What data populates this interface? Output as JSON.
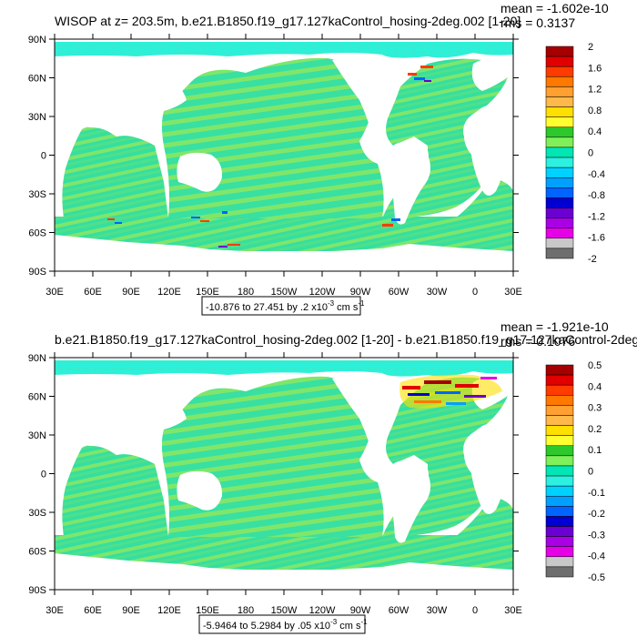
{
  "chart_data": [
    {
      "type": "heatmap",
      "title": "WISOP at z= 203.5m, b.e21.B1850.f19_g17.127kaControl_hosing-2deg.002 [1-20]",
      "stats": {
        "mean": "mean = -1.602e-10",
        "rms": "rms = 0.3137"
      },
      "y_ticks": [
        "90N",
        "60N",
        "30N",
        "0",
        "30S",
        "60S",
        "90S"
      ],
      "x_ticks": [
        "30E",
        "60E",
        "90E",
        "120E",
        "150E",
        "180",
        "150W",
        "120W",
        "90W",
        "60W",
        "30W",
        "0",
        "30E"
      ],
      "info": "-10.876 to 27.451 by .2 x10",
      "info_exp": "-3",
      "info_unit": " cm s",
      "info_exp2": "-1",
      "colorbar": {
        "labels": [
          "2",
          "1.6",
          "1.2",
          "0.8",
          "0.4",
          "0",
          "-0.4",
          "-0.8",
          "-1.2",
          "-1.6",
          "-2"
        ],
        "colors": [
          "#a50000",
          "#e00000",
          "#ff3c00",
          "#ff7800",
          "#ffa030",
          "#ffb84a",
          "#ffdf00",
          "#ffff30",
          "#2cc82c",
          "#7ff05a",
          "#00e6b4",
          "#2cf0e0",
          "#00d2ff",
          "#00a0ff",
          "#0064ff",
          "#0000d2",
          "#6a00d2",
          "#aa00e6",
          "#e600e6",
          "#c8c8c8",
          "#6e6e6e"
        ]
      }
    },
    {
      "type": "heatmap",
      "title": "b.e21.B1850.f19_g17.127kaControl_hosing-2deg.002 [1-20] - b.e21.B1850.f19_g17.127kaControl-2deg.",
      "stats": {
        "mean": "mean = -1.921e-10",
        "rms": "rms = 0.1076"
      },
      "y_ticks": [
        "90N",
        "60N",
        "30N",
        "0",
        "30S",
        "60S",
        "90S"
      ],
      "x_ticks": [
        "30E",
        "60E",
        "90E",
        "120E",
        "150E",
        "180",
        "150W",
        "120W",
        "90W",
        "60W",
        "30W",
        "0",
        "30E"
      ],
      "info": "-5.9464 to 5.2984 by .05 x10",
      "info_exp": "-3",
      "info_unit": " cm s",
      "info_exp2": "-1",
      "colorbar": {
        "labels": [
          "0.5",
          "0.4",
          "0.3",
          "0.2",
          "0.1",
          "0",
          "-0.1",
          "-0.2",
          "-0.3",
          "-0.4",
          "-0.5"
        ],
        "colors": [
          "#a50000",
          "#e00000",
          "#ff3c00",
          "#ff7800",
          "#ffa030",
          "#ffb84a",
          "#ffdf00",
          "#ffff30",
          "#2cc82c",
          "#7ff05a",
          "#00e6b4",
          "#2cf0e0",
          "#00d2ff",
          "#00a0ff",
          "#0064ff",
          "#0000d2",
          "#6a00d2",
          "#aa00e6",
          "#e600e6",
          "#c8c8c8",
          "#6e6e6e"
        ]
      }
    }
  ]
}
